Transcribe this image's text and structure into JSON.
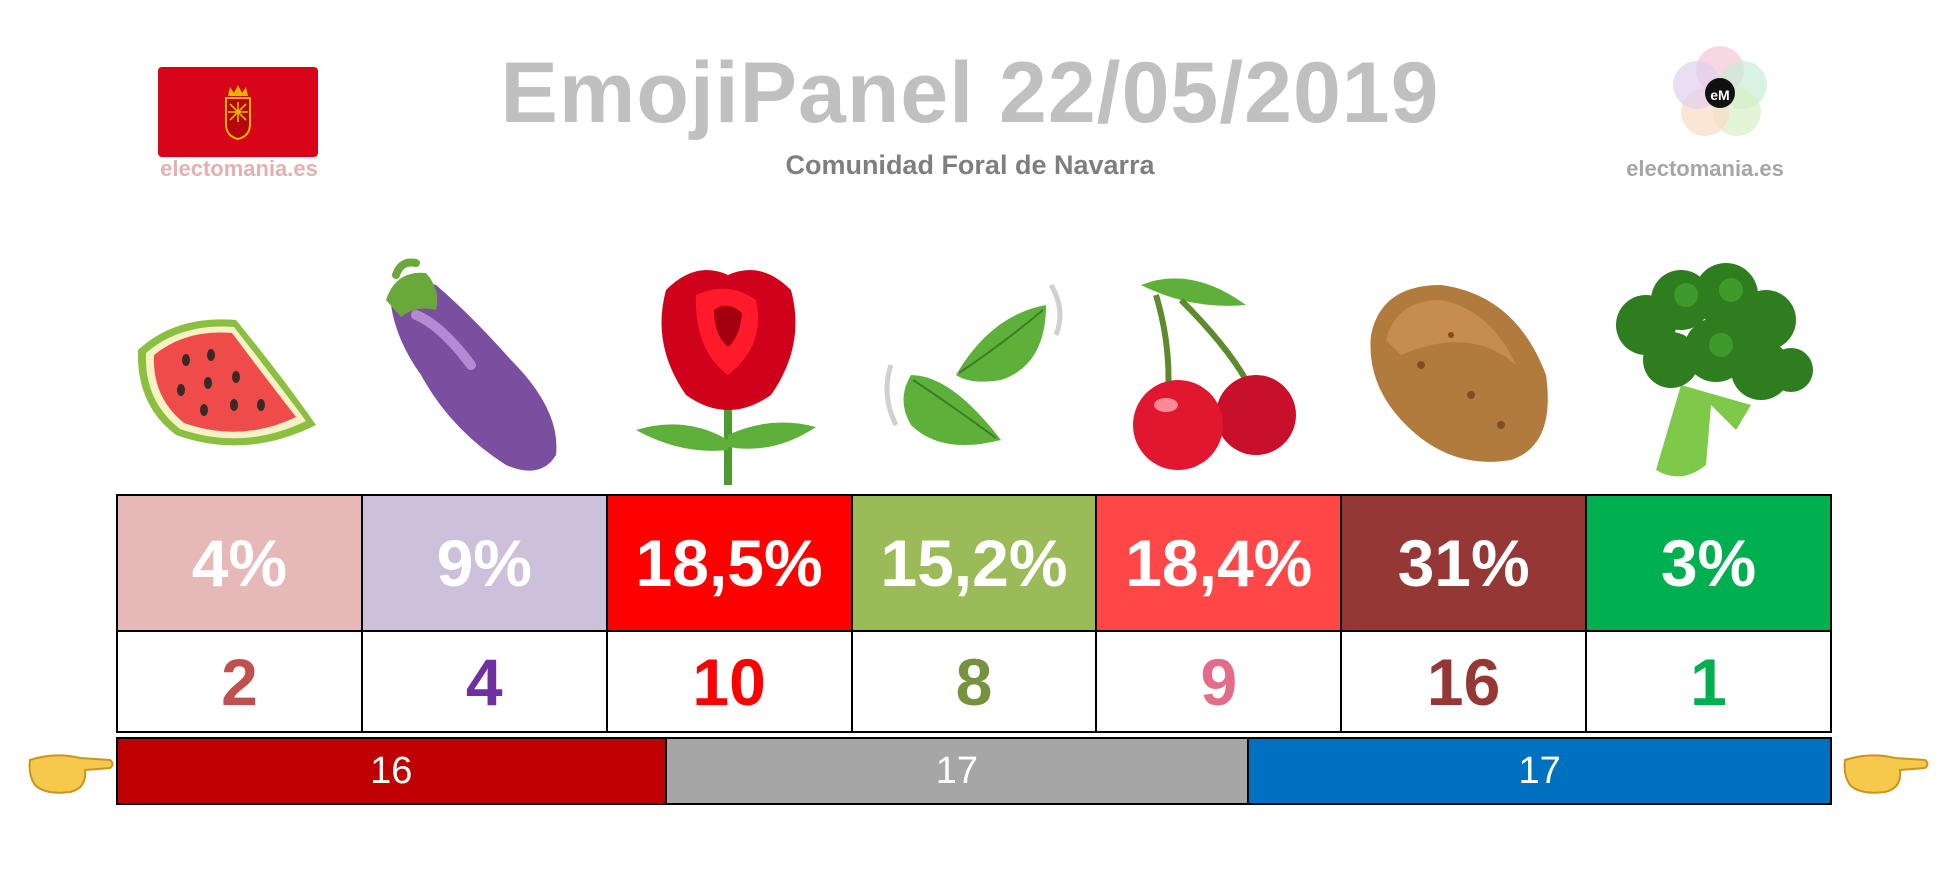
{
  "header": {
    "title": "EmojiPanel 22/05/2019",
    "subtitle": "Comunidad Foral de Navarra",
    "site_left": "electomania.es",
    "site_right": "electomania.es",
    "logo_text": "eM",
    "flag_icon": "navarra-flag-icon"
  },
  "chart_data": {
    "type": "table",
    "categories": [
      "watermelon",
      "eggplant",
      "rose",
      "leaves",
      "cherries",
      "potato",
      "broccoli"
    ],
    "percent_labels": [
      "4%",
      "9%",
      "18,5%",
      "15,2%",
      "18,4%",
      "31%",
      "3%"
    ],
    "percent_values": [
      4,
      9,
      18.5,
      15.2,
      18.4,
      31,
      3
    ],
    "seat_labels": [
      "2",
      "4",
      "10",
      "8",
      "9",
      "16",
      "1"
    ],
    "seats": [
      2,
      4,
      10,
      8,
      9,
      16,
      1
    ],
    "cell_colors": [
      "#e6b8b7",
      "#ccc0da",
      "#ff0000",
      "#9bbb59",
      "#ff4747",
      "#953735",
      "#00b050"
    ],
    "seat_colors": [
      "#c0504d",
      "#7030a0",
      "#ff0000",
      "#76923c",
      "#e46c8a",
      "#953735",
      "#00b050"
    ],
    "blocs": [
      {
        "label": "16",
        "value": 16,
        "color": "#c00000"
      },
      {
        "label": "17",
        "value": 17,
        "color": "#a6a6a6"
      },
      {
        "label": "17",
        "value": 17,
        "color": "#0070c0"
      }
    ]
  },
  "icons": {
    "pointer_left": "pointing-right-hand-icon",
    "pointer_right": "pointing-right-hand-icon"
  }
}
